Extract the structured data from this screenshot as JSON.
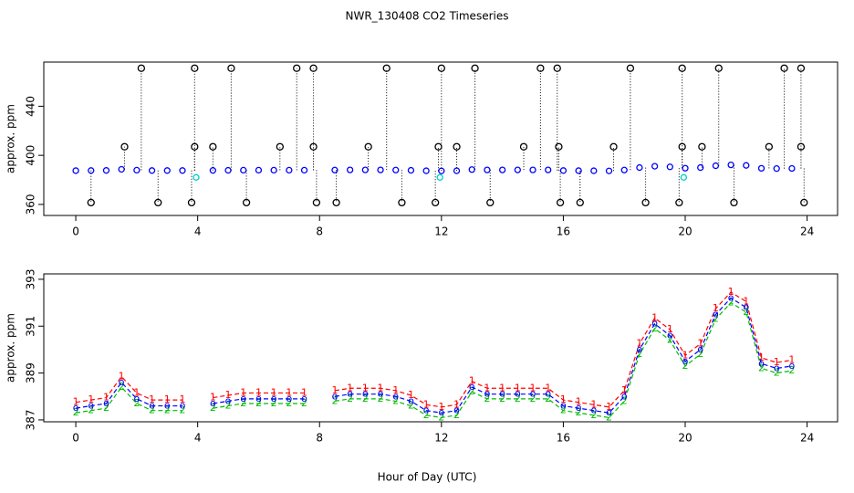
{
  "chart_data": [
    {
      "type": "scatter",
      "title": "NWR_130408  CO2 Timeseries",
      "ylabel": "approx. ppm",
      "xlim": [
        -1.05,
        25
      ],
      "xticks": [
        0,
        4,
        8,
        12,
        16,
        20,
        24
      ],
      "ylim": [
        351,
        476
      ],
      "yticks": [
        360,
        400,
        440
      ],
      "series": [
        {
          "color": "#0000ff",
          "marker": "circle",
          "stems": false,
          "x": [
            0,
            0.5,
            1,
            1.5,
            2,
            2.5,
            3,
            3.5,
            4,
            4.5,
            5,
            5.5,
            6,
            6.5,
            7,
            7.5,
            8,
            8.5,
            9,
            9.5,
            10,
            10.5,
            11,
            11.5,
            12,
            12.5,
            13,
            13.5,
            14,
            14.5,
            15,
            15.5,
            16,
            16.5,
            17,
            17.5,
            18,
            18.5,
            19,
            19.5,
            20,
            20.5,
            21,
            21.5,
            22,
            22.5,
            23,
            23.5
          ],
          "values": [
            387.5,
            387.6,
            387.7,
            388.6,
            387.9,
            387.6,
            387.6,
            387.6,
            null,
            387.7,
            387.8,
            387.9,
            387.9,
            387.9,
            387.9,
            387.9,
            null,
            388.0,
            388.1,
            388.1,
            388.1,
            388.0,
            387.8,
            387.4,
            387.3,
            387.4,
            388.4,
            388.1,
            388.1,
            388.1,
            388.1,
            388.1,
            387.6,
            387.5,
            387.4,
            387.3,
            388.0,
            390.0,
            391.1,
            390.6,
            389.5,
            390.0,
            391.5,
            392.2,
            391.8,
            389.4,
            389.2,
            389.3
          ]
        },
        {
          "color": "#00cccc",
          "marker": "circle",
          "stems": false,
          "x": [
            3.95,
            11.95,
            19.95
          ],
          "values": [
            382,
            382,
            382
          ]
        },
        {
          "color": "#000000",
          "marker": "circle",
          "stems": true,
          "x": [
            2.15,
            3.9,
            5.1,
            7.25,
            7.8,
            10.2,
            12.0,
            13.1,
            15.25,
            15.8,
            18.2,
            19.9,
            21.1,
            23.25,
            23.8,
            1.6,
            3.9,
            4.5,
            6.7,
            7.8,
            9.6,
            11.9,
            12.5,
            14.7,
            15.85,
            17.65,
            19.9,
            20.55,
            22.75,
            23.8,
            0.5,
            2.7,
            3.8,
            5.6,
            7.9,
            8.55,
            10.7,
            11.8,
            13.6,
            15.9,
            16.55,
            18.7,
            19.8,
            21.6,
            23.9
          ],
          "values": [
            471,
            471,
            471,
            471,
            471,
            471,
            471,
            471,
            471,
            471,
            471,
            471,
            471,
            471,
            471,
            407,
            407,
            407,
            407,
            407,
            407,
            407,
            407,
            407,
            407,
            407,
            407,
            407,
            407,
            407,
            361.5,
            361.5,
            361.5,
            361.5,
            361.5,
            361.5,
            361.5,
            361.5,
            361.5,
            361.5,
            361.5,
            361.5,
            361.5,
            361.5,
            361.5
          ]
        }
      ]
    },
    {
      "type": "scatter",
      "ylabel": "approx. ppm",
      "xlabel": "Hour of Day (UTC)",
      "xlim": [
        -1.05,
        25
      ],
      "xticks": [
        0,
        4,
        8,
        12,
        16,
        20,
        24
      ],
      "ylim": [
        386.92,
        393.23
      ],
      "yticks": [
        387,
        389,
        391,
        393
      ],
      "x": [
        0,
        0.5,
        1,
        1.5,
        2,
        2.5,
        3,
        3.5,
        4,
        4.5,
        5,
        5.5,
        6,
        6.5,
        7,
        7.5,
        8,
        8.5,
        9,
        9.5,
        10,
        10.5,
        11,
        11.5,
        12,
        12.5,
        13,
        13.5,
        14,
        14.5,
        15,
        15.5,
        16,
        16.5,
        17,
        17.5,
        18,
        18.5,
        19,
        19.5,
        20,
        20.5,
        21,
        21.5,
        22,
        22.5,
        23,
        23.5
      ],
      "series": [
        {
          "color": "#ff0000",
          "marker": "1",
          "values": [
            387.75,
            387.85,
            387.95,
            388.85,
            388.15,
            387.85,
            387.85,
            387.85,
            null,
            387.95,
            388.05,
            388.15,
            388.15,
            388.15,
            388.15,
            388.15,
            null,
            388.25,
            388.35,
            388.35,
            388.35,
            388.25,
            388.05,
            387.65,
            387.55,
            387.65,
            388.65,
            388.35,
            388.35,
            388.35,
            388.35,
            388.35,
            387.85,
            387.75,
            387.65,
            387.55,
            388.25,
            390.25,
            391.35,
            390.85,
            389.75,
            390.25,
            391.75,
            392.45,
            392.05,
            389.65,
            389.45,
            389.55
          ]
        },
        {
          "color": "#00bb00",
          "marker": "2",
          "values": [
            387.3,
            387.4,
            387.5,
            388.4,
            387.7,
            387.4,
            387.4,
            387.4,
            null,
            387.5,
            387.6,
            387.7,
            387.7,
            387.7,
            387.7,
            387.7,
            null,
            387.8,
            387.9,
            387.9,
            387.9,
            387.8,
            387.6,
            387.2,
            387.1,
            387.2,
            388.2,
            387.9,
            387.9,
            387.9,
            387.9,
            387.9,
            387.4,
            387.3,
            387.2,
            387.1,
            387.8,
            389.8,
            390.9,
            390.4,
            389.3,
            389.8,
            391.3,
            392.0,
            391.6,
            389.2,
            389.0,
            389.1
          ]
        },
        {
          "color": "#0000ff",
          "marker": "o",
          "values": [
            387.5,
            387.6,
            387.7,
            388.6,
            387.9,
            387.6,
            387.6,
            387.6,
            null,
            387.7,
            387.8,
            387.9,
            387.9,
            387.9,
            387.9,
            387.9,
            null,
            388.0,
            388.1,
            388.1,
            388.1,
            388.0,
            387.8,
            387.4,
            387.3,
            387.4,
            388.4,
            388.1,
            388.1,
            388.1,
            388.1,
            388.1,
            387.6,
            387.5,
            387.4,
            387.3,
            388.0,
            390.0,
            391.1,
            390.6,
            389.5,
            390.0,
            391.5,
            392.2,
            391.8,
            389.4,
            389.2,
            389.3
          ]
        }
      ]
    }
  ]
}
